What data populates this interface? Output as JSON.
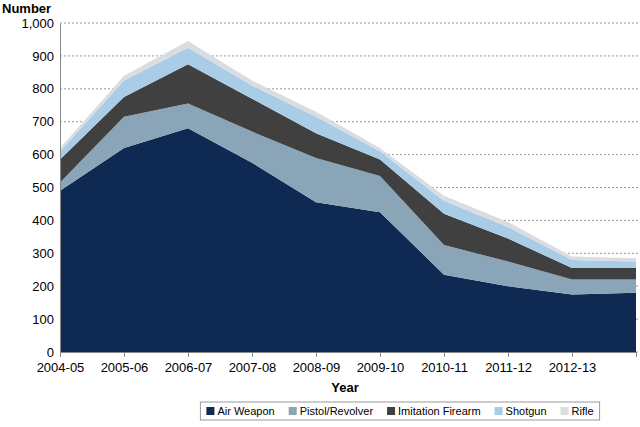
{
  "chart_data": {
    "type": "area",
    "stacked": true,
    "grid": true,
    "legend": "bottom",
    "y_label": "Number",
    "x_label": "Year",
    "categories": [
      "2004-05",
      "2005-06",
      "2006-07",
      "2007-08",
      "2008-09",
      "2009-10",
      "2010-11",
      "2011-12",
      "2012-13",
      null
    ],
    "ylim": [
      0,
      1000
    ],
    "yticks": [
      0,
      100,
      200,
      300,
      400,
      500,
      600,
      700,
      800,
      900,
      {
        "value": 1000,
        "label": "1,000"
      }
    ],
    "series": [
      {
        "name": "Air Weapon",
        "color": "#0f2a52",
        "values": [
          490,
          620,
          680,
          575,
          455,
          425,
          235,
          200,
          175,
          180
        ]
      },
      {
        "name": "Pistol/Revolver",
        "color": "#8aa5b8",
        "values": [
          25,
          95,
          75,
          95,
          135,
          110,
          90,
          75,
          45,
          40
        ]
      },
      {
        "name": "Imitation Firearm",
        "color": "#404040",
        "values": [
          70,
          60,
          120,
          100,
          75,
          50,
          95,
          70,
          35,
          35
        ]
      },
      {
        "name": "Shotgun",
        "color": "#a9cde6",
        "values": [
          25,
          50,
          50,
          40,
          50,
          25,
          40,
          35,
          25,
          20
        ]
      },
      {
        "name": "Rifle",
        "color": "#d9dde2",
        "values": [
          10,
          15,
          20,
          15,
          15,
          10,
          15,
          15,
          10,
          10
        ]
      }
    ]
  }
}
